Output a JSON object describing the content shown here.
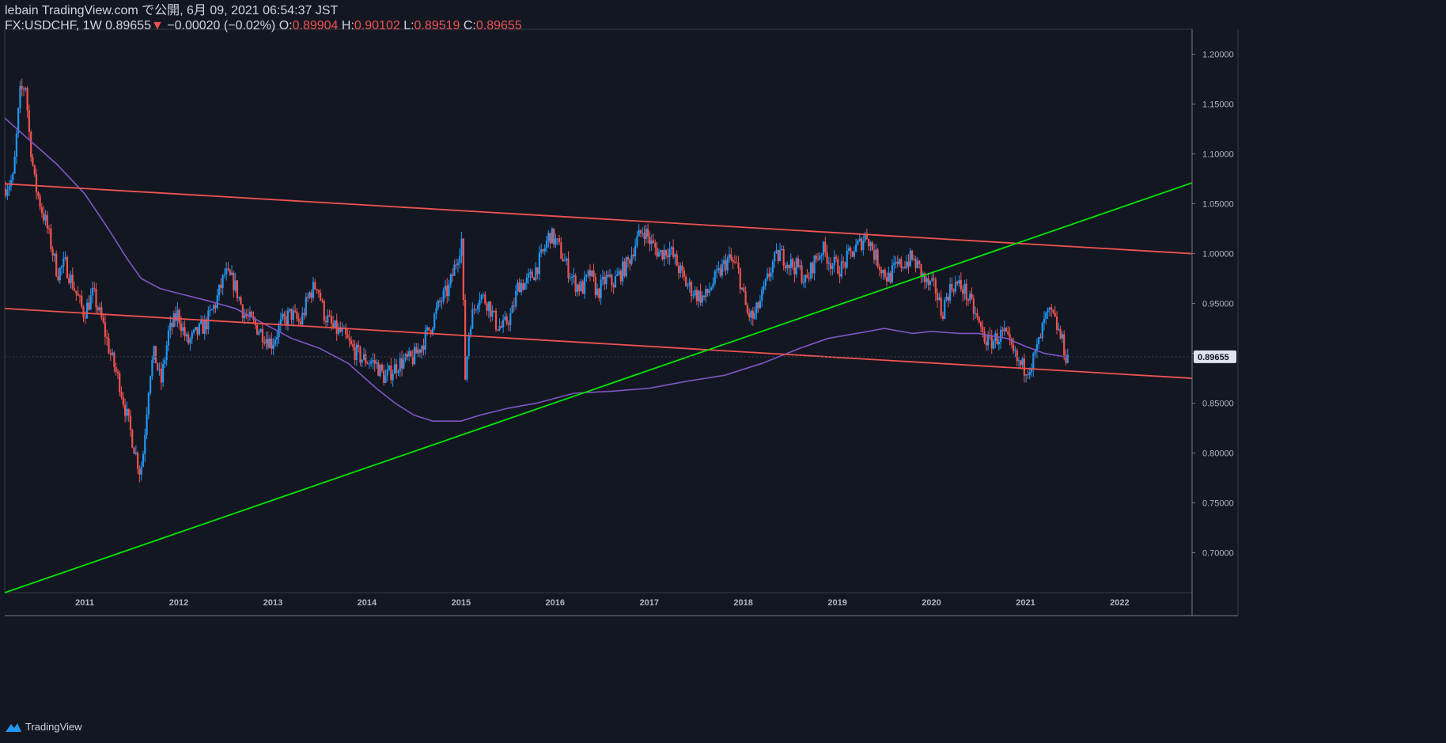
{
  "header": {
    "publish_line": "lebain TradingView.com で公開, 6月 09, 2021 06:54:37 JST",
    "symbol": "FX:USDCHF, 1W",
    "last_price": "0.89655",
    "change_arrow": "▼",
    "change": "−0.00020 (−0.02%)",
    "open_label": "O:",
    "open_value": "0.89904",
    "high_label": "H:",
    "high_value": "0.90102",
    "low_label": "L:",
    "low_value": "0.89519",
    "close_label": "C:",
    "close_value": "0.89655"
  },
  "footer": {
    "brand": "TradingView"
  },
  "colors": {
    "background": "#131722",
    "up": "#2196f3",
    "down": "#ef5350",
    "channel": "#ef5350",
    "trendline": "#00e600",
    "ma": "#7e57c2",
    "price_tag": "#e0e3eb"
  },
  "chart_data": {
    "type": "candlestick",
    "title": "FX:USDCHF, 1W",
    "x_range": [
      2010.15,
      2022.77
    ],
    "ylim": [
      0.66,
      1.225
    ],
    "x_ticks": [
      {
        "label": "2011",
        "x": 2011.0
      },
      {
        "label": "2012",
        "x": 2012.0
      },
      {
        "label": "2013",
        "x": 2013.0
      },
      {
        "label": "2014",
        "x": 2014.0
      },
      {
        "label": "2015",
        "x": 2015.0
      },
      {
        "label": "2016",
        "x": 2016.0
      },
      {
        "label": "2017",
        "x": 2017.0
      },
      {
        "label": "2018",
        "x": 2018.0
      },
      {
        "label": "2019",
        "x": 2019.0
      },
      {
        "label": "2020",
        "x": 2020.0
      },
      {
        "label": "2021",
        "x": 2021.0
      },
      {
        "label": "2022",
        "x": 2022.0
      }
    ],
    "y_ticks": [
      {
        "label": "0.70000",
        "v": 0.7
      },
      {
        "label": "0.75000",
        "v": 0.75
      },
      {
        "label": "0.80000",
        "v": 0.8
      },
      {
        "label": "0.85000",
        "v": 0.85
      },
      {
        "label": "0.90000",
        "v": 0.9
      },
      {
        "label": "0.95000",
        "v": 0.95
      },
      {
        "label": "1.00000",
        "v": 1.0
      },
      {
        "label": "1.05000",
        "v": 1.05
      },
      {
        "label": "1.10000",
        "v": 1.1
      },
      {
        "label": "1.15000",
        "v": 1.15
      },
      {
        "label": "1.20000",
        "v": 1.2
      }
    ],
    "last_price_label": "0.89655",
    "last_price": 0.89655,
    "price_path": [
      [
        2010.15,
        1.065
      ],
      [
        2010.25,
        1.075
      ],
      [
        2010.32,
        1.16
      ],
      [
        2010.38,
        1.17
      ],
      [
        2010.42,
        1.12
      ],
      [
        2010.48,
        1.07
      ],
      [
        2010.55,
        1.045
      ],
      [
        2010.6,
        1.03
      ],
      [
        2010.72,
        0.98
      ],
      [
        2010.8,
        0.99
      ],
      [
        2010.92,
        0.96
      ],
      [
        2011.0,
        0.94
      ],
      [
        2011.1,
        0.96
      ],
      [
        2011.2,
        0.93
      ],
      [
        2011.28,
        0.9
      ],
      [
        2011.38,
        0.87
      ],
      [
        2011.45,
        0.84
      ],
      [
        2011.55,
        0.8
      ],
      [
        2011.6,
        0.78
      ],
      [
        2011.63,
        0.8
      ],
      [
        2011.7,
        0.88
      ],
      [
        2011.75,
        0.9
      ],
      [
        2011.82,
        0.87
      ],
      [
        2011.9,
        0.92
      ],
      [
        2012.0,
        0.94
      ],
      [
        2012.1,
        0.91
      ],
      [
        2012.2,
        0.92
      ],
      [
        2012.3,
        0.93
      ],
      [
        2012.4,
        0.95
      ],
      [
        2012.5,
        0.98
      ],
      [
        2012.6,
        0.97
      ],
      [
        2012.7,
        0.94
      ],
      [
        2012.8,
        0.93
      ],
      [
        2012.9,
        0.92
      ],
      [
        2013.0,
        0.91
      ],
      [
        2013.1,
        0.93
      ],
      [
        2013.2,
        0.94
      ],
      [
        2013.3,
        0.93
      ],
      [
        2013.4,
        0.96
      ],
      [
        2013.48,
        0.97
      ],
      [
        2013.55,
        0.94
      ],
      [
        2013.65,
        0.925
      ],
      [
        2013.75,
        0.92
      ],
      [
        2013.85,
        0.905
      ],
      [
        2013.95,
        0.895
      ],
      [
        2014.1,
        0.89
      ],
      [
        2014.2,
        0.875
      ],
      [
        2014.35,
        0.89
      ],
      [
        2014.5,
        0.895
      ],
      [
        2014.6,
        0.91
      ],
      [
        2014.7,
        0.93
      ],
      [
        2014.78,
        0.95
      ],
      [
        2014.88,
        0.965
      ],
      [
        2014.98,
        1.0
      ],
      [
        2015.03,
        1.02
      ],
      [
        2015.04,
        0.86
      ],
      [
        2015.1,
        0.93
      ],
      [
        2015.2,
        0.96
      ],
      [
        2015.3,
        0.95
      ],
      [
        2015.38,
        0.93
      ],
      [
        2015.45,
        0.925
      ],
      [
        2015.55,
        0.94
      ],
      [
        2015.62,
        0.97
      ],
      [
        2015.7,
        0.97
      ],
      [
        2015.78,
        0.98
      ],
      [
        2015.88,
        1.0
      ],
      [
        2015.95,
        1.02
      ],
      [
        2016.03,
        1.01
      ],
      [
        2016.12,
        0.99
      ],
      [
        2016.22,
        0.97
      ],
      [
        2016.3,
        0.965
      ],
      [
        2016.38,
        0.98
      ],
      [
        2016.46,
        0.96
      ],
      [
        2016.55,
        0.975
      ],
      [
        2016.62,
        0.97
      ],
      [
        2016.7,
        0.98
      ],
      [
        2016.78,
        0.99
      ],
      [
        2016.86,
        1.01
      ],
      [
        2016.95,
        1.025
      ],
      [
        2017.03,
        1.01
      ],
      [
        2017.12,
        1.0
      ],
      [
        2017.22,
        1.005
      ],
      [
        2017.3,
        0.99
      ],
      [
        2017.4,
        0.97
      ],
      [
        2017.5,
        0.96
      ],
      [
        2017.6,
        0.955
      ],
      [
        2017.68,
        0.97
      ],
      [
        2017.75,
        0.98
      ],
      [
        2017.85,
        0.995
      ],
      [
        2017.95,
        0.985
      ],
      [
        2018.05,
        0.94
      ],
      [
        2018.12,
        0.935
      ],
      [
        2018.22,
        0.96
      ],
      [
        2018.32,
        0.99
      ],
      [
        2018.4,
        1.0
      ],
      [
        2018.5,
        0.99
      ],
      [
        2018.6,
        0.985
      ],
      [
        2018.68,
        0.97
      ],
      [
        2018.75,
        0.99
      ],
      [
        2018.85,
        1.005
      ],
      [
        2018.95,
        0.99
      ],
      [
        2019.05,
        0.985
      ],
      [
        2019.15,
        1.0
      ],
      [
        2019.25,
        1.01
      ],
      [
        2019.32,
        1.02
      ],
      [
        2019.4,
        1.0
      ],
      [
        2019.48,
        0.985
      ],
      [
        2019.55,
        0.975
      ],
      [
        2019.62,
        0.985
      ],
      [
        2019.7,
        0.99
      ],
      [
        2019.8,
        0.995
      ],
      [
        2019.88,
        0.985
      ],
      [
        2019.95,
        0.97
      ],
      [
        2020.05,
        0.965
      ],
      [
        2020.12,
        0.94
      ],
      [
        2020.18,
        0.96
      ],
      [
        2020.25,
        0.97
      ],
      [
        2020.35,
        0.965
      ],
      [
        2020.45,
        0.945
      ],
      [
        2020.55,
        0.92
      ],
      [
        2020.62,
        0.91
      ],
      [
        2020.7,
        0.915
      ],
      [
        2020.78,
        0.92
      ],
      [
        2020.85,
        0.905
      ],
      [
        2020.93,
        0.89
      ],
      [
        2021.0,
        0.885
      ],
      [
        2021.08,
        0.89
      ],
      [
        2021.15,
        0.91
      ],
      [
        2021.22,
        0.935
      ],
      [
        2021.28,
        0.94
      ],
      [
        2021.35,
        0.925
      ],
      [
        2021.42,
        0.905
      ],
      [
        2021.44,
        0.8966
      ]
    ],
    "moving_average": [
      [
        2010.15,
        1.136
      ],
      [
        2010.4,
        1.115
      ],
      [
        2010.7,
        1.09
      ],
      [
        2011.0,
        1.06
      ],
      [
        2011.25,
        1.025
      ],
      [
        2011.45,
        0.995
      ],
      [
        2011.6,
        0.975
      ],
      [
        2011.8,
        0.965
      ],
      [
        2012.0,
        0.96
      ],
      [
        2012.3,
        0.953
      ],
      [
        2012.6,
        0.945
      ],
      [
        2012.9,
        0.93
      ],
      [
        2013.2,
        0.915
      ],
      [
        2013.5,
        0.905
      ],
      [
        2013.8,
        0.89
      ],
      [
        2014.1,
        0.865
      ],
      [
        2014.3,
        0.85
      ],
      [
        2014.5,
        0.838
      ],
      [
        2014.7,
        0.832
      ],
      [
        2015.0,
        0.832
      ],
      [
        2015.2,
        0.838
      ],
      [
        2015.5,
        0.845
      ],
      [
        2015.8,
        0.85
      ],
      [
        2016.2,
        0.86
      ],
      [
        2016.6,
        0.862
      ],
      [
        2017.0,
        0.865
      ],
      [
        2017.4,
        0.872
      ],
      [
        2017.8,
        0.878
      ],
      [
        2018.2,
        0.89
      ],
      [
        2018.6,
        0.905
      ],
      [
        2018.9,
        0.915
      ],
      [
        2019.2,
        0.92
      ],
      [
        2019.5,
        0.925
      ],
      [
        2019.8,
        0.92
      ],
      [
        2020.0,
        0.922
      ],
      [
        2020.3,
        0.92
      ],
      [
        2020.5,
        0.92
      ],
      [
        2020.8,
        0.915
      ],
      [
        2021.0,
        0.907
      ],
      [
        2021.2,
        0.9
      ],
      [
        2021.45,
        0.896
      ]
    ],
    "lines": [
      {
        "name": "channel-upper",
        "color": "#ef5350",
        "p1": [
          2010.15,
          1.07
        ],
        "p2": [
          2022.77,
          1.0
        ]
      },
      {
        "name": "channel-lower",
        "color": "#ef5350",
        "p1": [
          2010.15,
          0.945
        ],
        "p2": [
          2022.77,
          0.875
        ]
      },
      {
        "name": "green-trendline",
        "color": "#00e600",
        "p1": [
          2010.15,
          0.66
        ],
        "p2": [
          2022.77,
          1.071
        ]
      }
    ]
  }
}
